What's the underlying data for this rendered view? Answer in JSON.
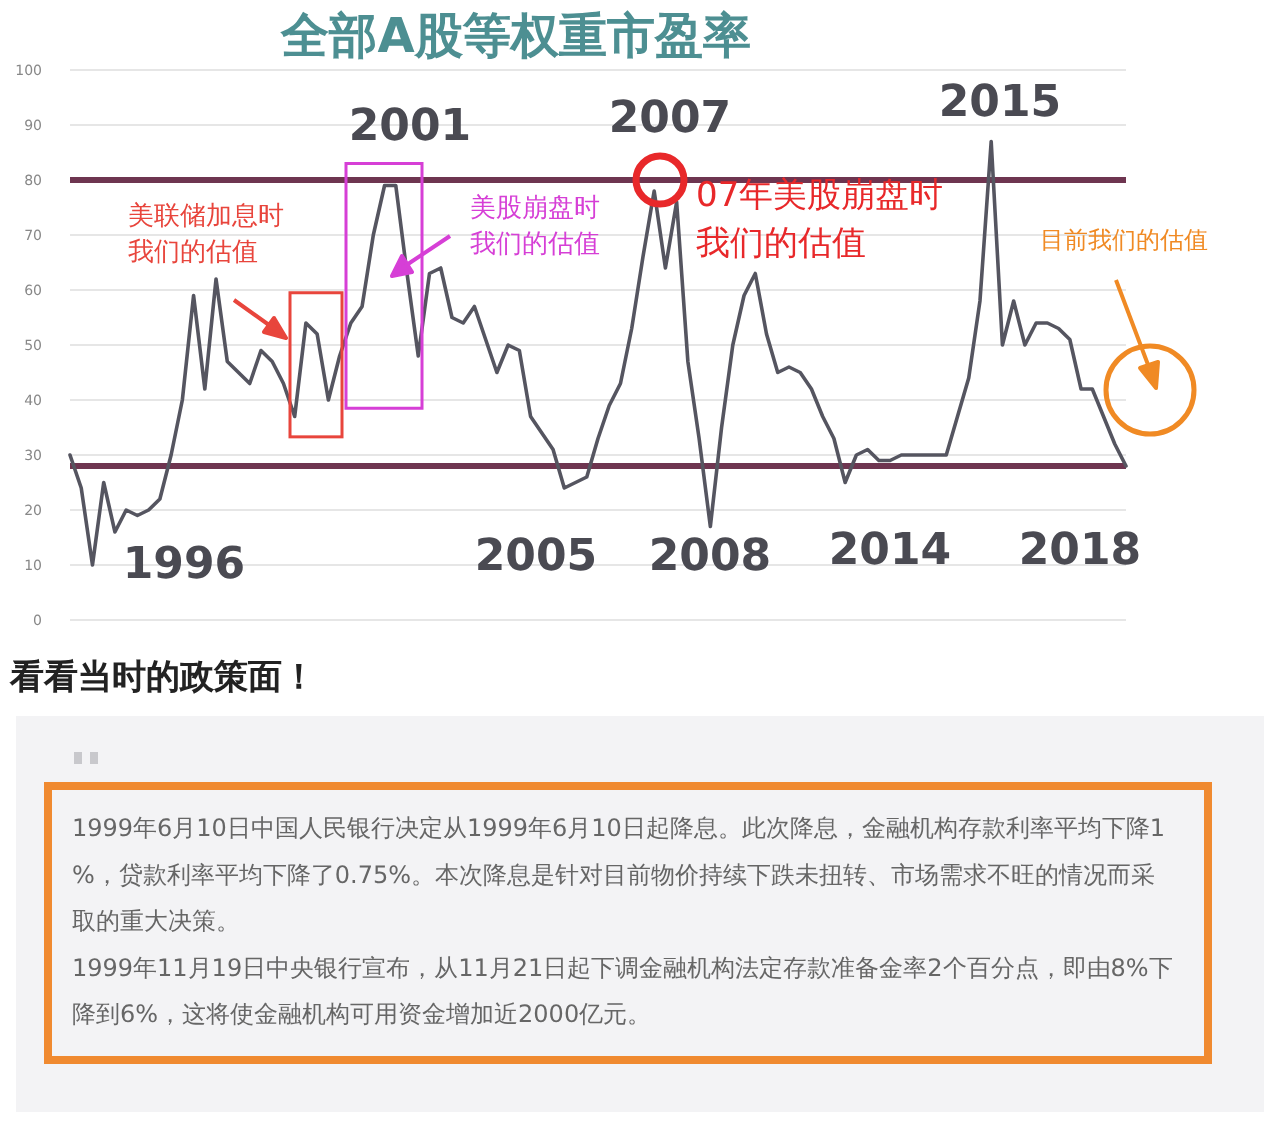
{
  "chart_data": {
    "type": "line",
    "title": "全部A股等权重市盈率",
    "categories": [
      null,
      null,
      null,
      null,
      null,
      null,
      null,
      null,
      null,
      null,
      null,
      null,
      null,
      null,
      null,
      null,
      null,
      null,
      null,
      null,
      null,
      null,
      null,
      null,
      null,
      null,
      null,
      null,
      null,
      null,
      null,
      null,
      null,
      null,
      null,
      null,
      null,
      null,
      null,
      null,
      null,
      null,
      null,
      null,
      null,
      null,
      null,
      null,
      null,
      null,
      null,
      null,
      null,
      null,
      null,
      null,
      null,
      null,
      null,
      null,
      null,
      null,
      null,
      null,
      null,
      null,
      null,
      null,
      null,
      null,
      null,
      null,
      null,
      null,
      null,
      null,
      null,
      null,
      null,
      null,
      null,
      null,
      null,
      null,
      null,
      null,
      null,
      null,
      null,
      null,
      null,
      null,
      null,
      null,
      null
    ],
    "ylim": [
      0,
      100
    ],
    "yticks": [
      0,
      10,
      20,
      30,
      40,
      50,
      60,
      70,
      80,
      90,
      100
    ],
    "grid": "y",
    "tick_labels": "y",
    "marker": "none",
    "line_style": "solid",
    "series": [
      {
        "color": "#555560",
        "values": [
          30,
          24,
          10,
          25,
          16,
          20,
          19,
          20,
          22,
          30,
          40,
          59,
          42,
          62,
          47,
          45,
          43,
          49,
          47,
          43,
          37,
          54,
          52,
          40,
          48,
          54,
          57,
          70,
          79,
          79,
          63,
          48,
          63,
          64,
          55,
          54,
          57,
          51,
          45,
          50,
          49,
          37,
          34,
          31,
          24,
          25,
          26,
          33,
          39,
          43,
          53,
          66,
          78,
          64,
          76,
          47,
          33,
          17,
          35,
          50,
          59,
          63,
          52,
          45,
          46,
          45,
          42,
          37,
          33,
          25,
          30,
          31,
          29,
          29,
          30,
          30,
          30,
          30,
          30,
          37,
          44,
          58,
          87,
          50,
          58,
          50,
          54,
          54,
          53,
          51,
          42,
          42,
          37,
          32,
          28
        ]
      }
    ],
    "ref_lines": [
      {
        "axis": "y",
        "value": 80,
        "color": "#6e3550"
      },
      {
        "axis": "y",
        "value": 28,
        "color": "#6e3550"
      }
    ],
    "annotations": [
      "1996",
      "2001",
      "2007",
      "2015",
      "2005",
      "2008",
      "2014",
      "2018",
      "美联储加息时我们的估值",
      "美股崩盘时我们的估值",
      "07年美股崩盘时我们的估值",
      "目前我们的估值",
      "看看当时的政策面！",
      "1999年6月10日中国人民银行决定从1999年6月10日起降息。此次降息，金融机构存款利率平均下降1%，贷款利率平均下降了0.75%。本次降息是针对目前物价持续下跌未扭转、市场需求不旺的情况而采取的重大决策。",
      "1999年11月19日中央银行宣布，从11月21日起下调金融机构法定存款准备金率2个百分点，即由8%下降到6%，这将使金融机构可用资金增加近2000亿元。"
    ]
  }
}
